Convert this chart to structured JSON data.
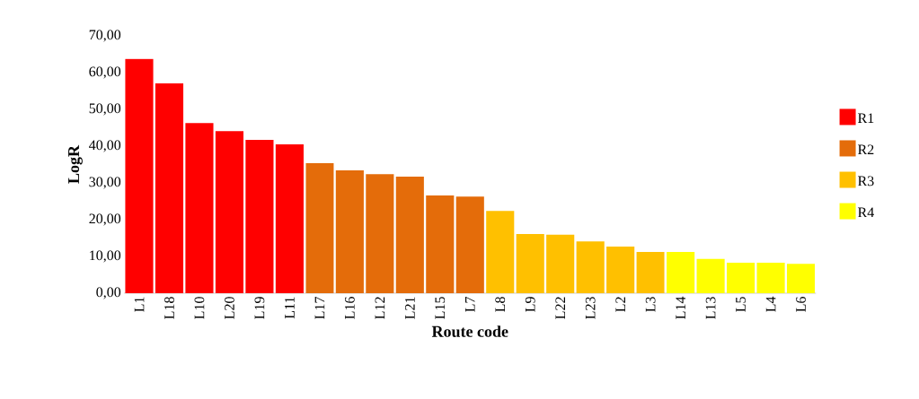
{
  "chart_data": {
    "type": "bar",
    "xlabel": "Route code",
    "ylabel": "LogR",
    "categories": [
      "L1",
      "L18",
      "L10",
      "L20",
      "L19",
      "L11",
      "L17",
      "L16",
      "L12",
      "L21",
      "L15",
      "L7",
      "L8",
      "L9",
      "L22",
      "L23",
      "L2",
      "L3",
      "L14",
      "L13",
      "L5",
      "L4",
      "L6"
    ],
    "series": [
      {
        "name": "R1",
        "color": "#ff0000",
        "values": [
          63.7,
          57.1,
          46.3,
          44.1,
          41.7,
          40.5,
          null,
          null,
          null,
          null,
          null,
          null,
          null,
          null,
          null,
          null,
          null,
          null,
          null,
          null,
          null,
          null,
          null
        ]
      },
      {
        "name": "R2",
        "color": "#e46c0a",
        "values": [
          null,
          null,
          null,
          null,
          null,
          null,
          35.4,
          33.4,
          32.4,
          31.7,
          26.6,
          26.3,
          null,
          null,
          null,
          null,
          null,
          null,
          null,
          null,
          null,
          null,
          null
        ]
      },
      {
        "name": "R3",
        "color": "#ffc000",
        "values": [
          null,
          null,
          null,
          null,
          null,
          null,
          null,
          null,
          null,
          null,
          null,
          null,
          22.4,
          16.1,
          15.9,
          14.1,
          12.7,
          11.2,
          null,
          null,
          null,
          null,
          null
        ]
      },
      {
        "name": "R4",
        "color": "#ffff00",
        "values": [
          null,
          null,
          null,
          null,
          null,
          null,
          null,
          null,
          null,
          null,
          null,
          null,
          null,
          null,
          null,
          null,
          null,
          null,
          11.2,
          9.3,
          8.3,
          8.3,
          8.0
        ]
      }
    ],
    "ylim": [
      0,
      70
    ],
    "yticks": [
      {
        "value": 0,
        "label": "0,00"
      },
      {
        "value": 10,
        "label": "10,00"
      },
      {
        "value": 20,
        "label": "20,00"
      },
      {
        "value": 30,
        "label": "30,00"
      },
      {
        "value": 40,
        "label": "40,00"
      },
      {
        "value": 50,
        "label": "50,00"
      },
      {
        "value": 60,
        "label": "60,00"
      },
      {
        "value": 70,
        "label": "70,00"
      }
    ],
    "grid": false,
    "legend": "right"
  }
}
